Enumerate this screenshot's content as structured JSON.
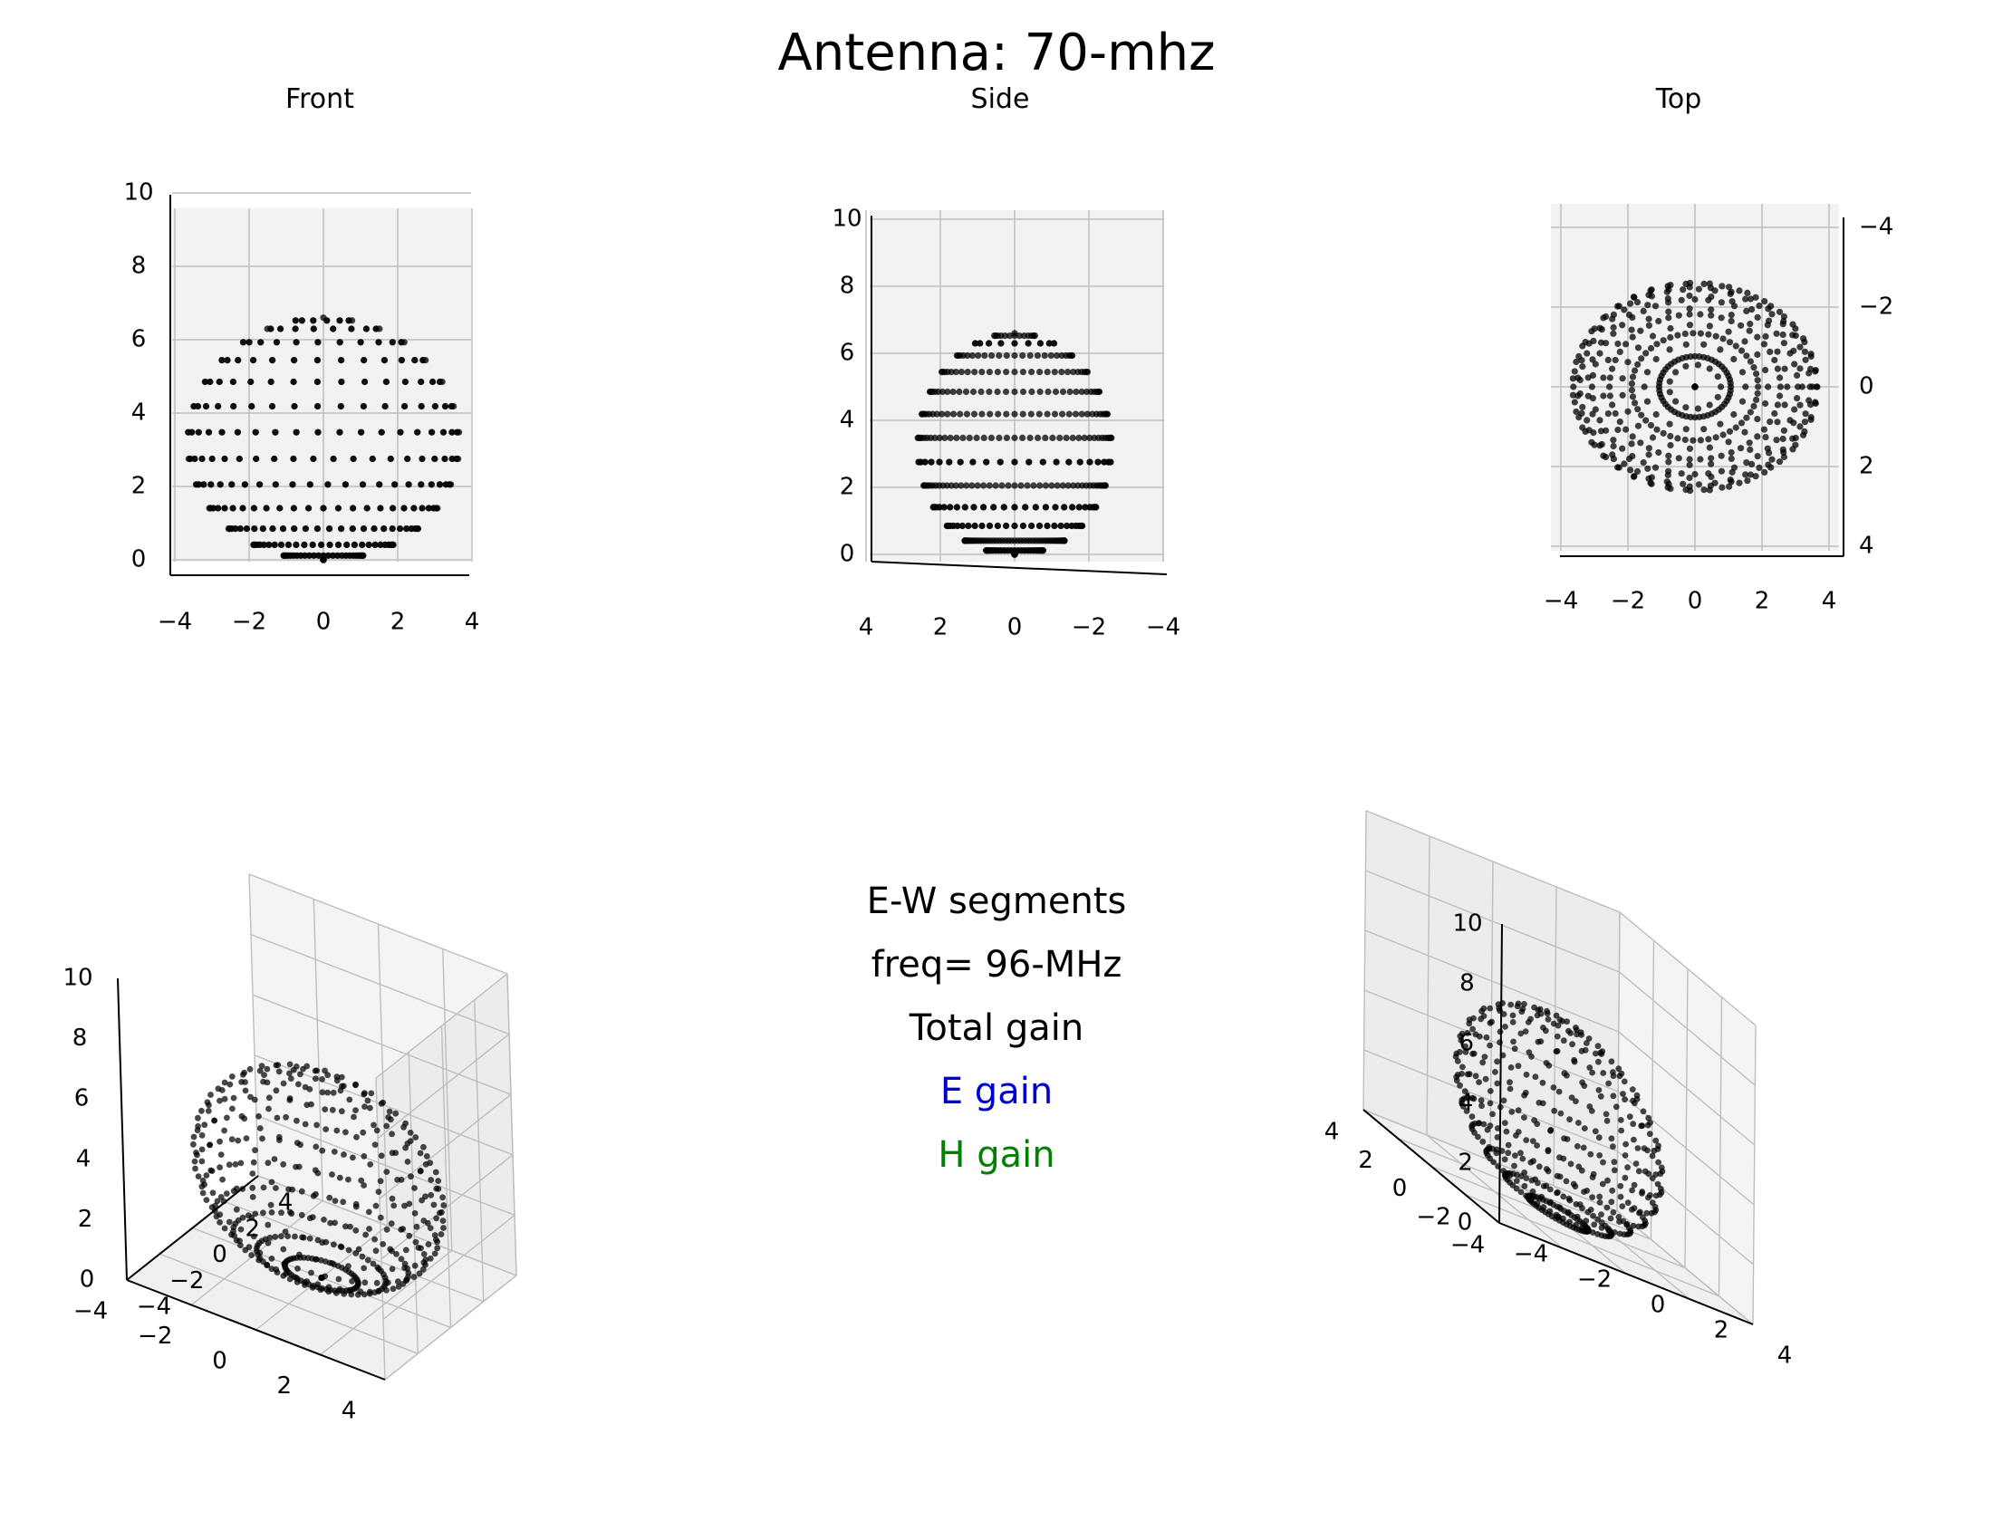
{
  "figure": {
    "title": "Antenna: 70-mhz"
  },
  "panels": {
    "front": {
      "title": "Front"
    },
    "side": {
      "title": "Side"
    },
    "top": {
      "title": "Top"
    }
  },
  "legend": {
    "lines": [
      {
        "text": "E-W segments",
        "color": "#000000"
      },
      {
        "text": "freq= 96-MHz",
        "color": "#000000"
      },
      {
        "text": "Total gain",
        "color": "#000000"
      },
      {
        "text": "E gain",
        "color": "#0000cc"
      },
      {
        "text": "H gain",
        "color": "#008000"
      }
    ]
  },
  "colors": {
    "pane": "#f2f2f2",
    "grid": "#bebebe",
    "points": "#000000"
  },
  "chart_data": [
    {
      "type": "scatter",
      "subtype": "3d-radiation-pattern",
      "view": "front",
      "title": "Front",
      "xlim": [
        -4,
        4
      ],
      "ylim": [
        -4,
        4
      ],
      "zlim": [
        0,
        10
      ],
      "x_ticks": [
        "−4",
        "−2",
        "0",
        "2",
        "4"
      ],
      "z_ticks": [
        "0",
        "2",
        "4",
        "6",
        "8",
        "10"
      ],
      "pattern": {
        "r_max": 6.6,
        "theta_steps": 14,
        "phi_steps": 44
      }
    },
    {
      "type": "scatter",
      "subtype": "3d-radiation-pattern",
      "view": "side",
      "title": "Side",
      "xlim": [
        -4,
        4
      ],
      "ylim": [
        -4,
        4
      ],
      "zlim": [
        0,
        10
      ],
      "y_ticks": [
        "4",
        "2",
        "0",
        "−2",
        "−4"
      ],
      "z_ticks": [
        "0",
        "2",
        "4",
        "6",
        "8",
        "10"
      ],
      "pattern": {
        "r_max": 6.6,
        "theta_steps": 14,
        "phi_steps": 44
      }
    },
    {
      "type": "scatter",
      "subtype": "3d-radiation-pattern",
      "view": "top",
      "title": "Top",
      "xlim": [
        -4,
        4
      ],
      "ylim": [
        -4,
        4
      ],
      "zlim": [
        0,
        10
      ],
      "x_ticks": [
        "−4",
        "−2",
        "0",
        "2",
        "4"
      ],
      "y_ticks": [
        "−4",
        "−2",
        "0",
        "2",
        "4"
      ],
      "pattern": {
        "r_max": 6.6,
        "theta_steps": 14,
        "phi_steps": 44
      }
    },
    {
      "type": "scatter",
      "subtype": "3d-radiation-pattern",
      "view": "isometric-left",
      "xlim": [
        -4,
        4
      ],
      "ylim": [
        -4,
        4
      ],
      "zlim": [
        0,
        10
      ],
      "x_ticks": [
        "−4",
        "−2",
        "0",
        "2",
        "4"
      ],
      "y_ticks": [
        "−4",
        "−2",
        "0",
        "2",
        "4"
      ],
      "z_ticks": [
        "0",
        "2",
        "4",
        "6",
        "8",
        "10"
      ],
      "pattern": {
        "r_max": 6.6,
        "theta_steps": 14,
        "phi_steps": 44
      }
    },
    {
      "type": "scatter",
      "subtype": "3d-radiation-pattern",
      "view": "isometric-right",
      "xlim": [
        -4,
        4
      ],
      "ylim": [
        -4,
        4
      ],
      "zlim": [
        0,
        10
      ],
      "x_ticks": [
        "−4",
        "−2",
        "0",
        "2",
        "4"
      ],
      "y_ticks": [
        "−4",
        "−2",
        "0",
        "2",
        "4"
      ],
      "z_ticks": [
        "0",
        "2",
        "4",
        "6",
        "8",
        "10"
      ],
      "pattern": {
        "r_max": 6.6,
        "theta_steps": 14,
        "phi_steps": 44
      }
    }
  ]
}
